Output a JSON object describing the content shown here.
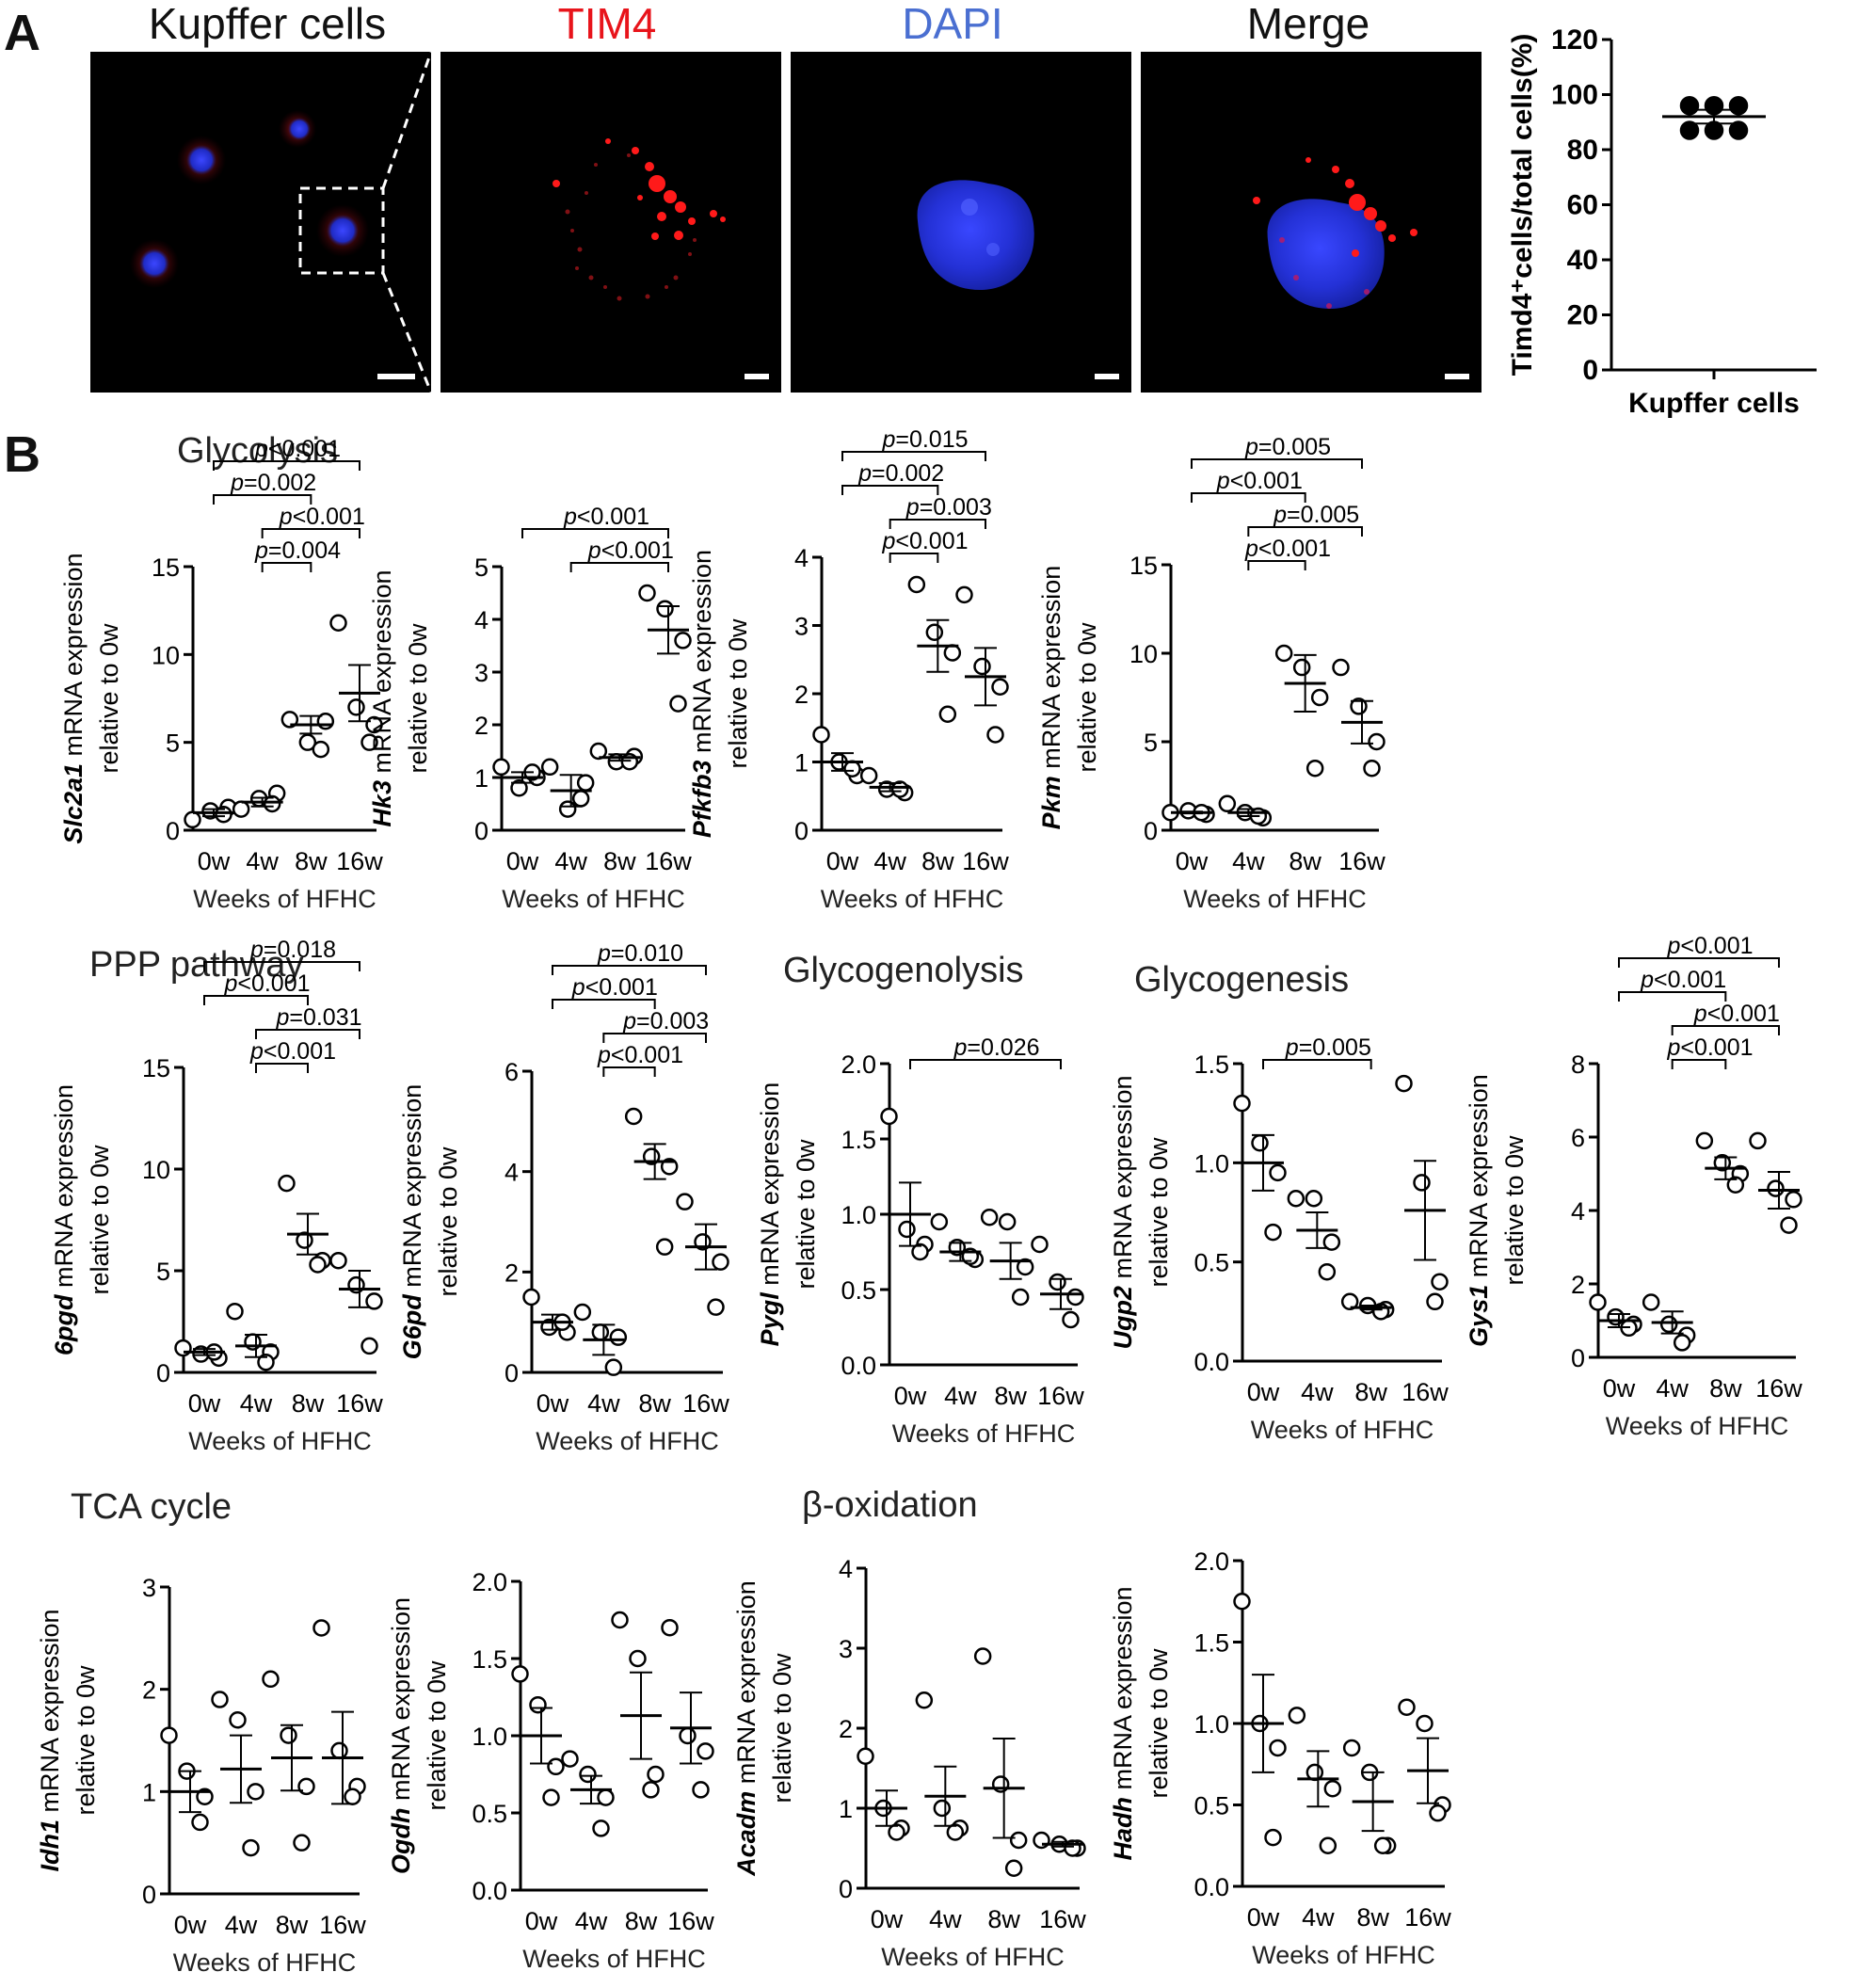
{
  "panel_labels": {
    "a": "A",
    "b": "B"
  },
  "micrographs": [
    {
      "title": "Kupffer cells",
      "color": "#000000"
    },
    {
      "title": "TIM4",
      "color": "#e8141b"
    },
    {
      "title": "DAPI",
      "color": "#4a6fd1"
    },
    {
      "title": "Merge",
      "color": "#000000"
    }
  ],
  "sections": {
    "glycolysis": "Glycolysis",
    "ppp": "PPP pathway",
    "glycogenolysis": "Glycogenolysis",
    "glycogenesis": "Glycogenesis",
    "tca": "TCA cycle",
    "beta_ox": "β-oxidation"
  },
  "chart_data": [
    {
      "id": "timd4",
      "type": "scatter",
      "ylabel": "Timd4⁺cells/total cells(%)",
      "categories": [
        "Kupffer cells"
      ],
      "yticks": [
        "0",
        "20",
        "40",
        "60",
        "80",
        "100",
        "120"
      ],
      "ylim": [
        0,
        120
      ],
      "points": [
        [
          96,
          96,
          96,
          87,
          87,
          87
        ]
      ],
      "mean": [
        92
      ],
      "sem": [
        2.5
      ]
    },
    {
      "id": "slc2a1",
      "type": "scatter",
      "gene": "Slc2a1",
      "ylabel_rest": " mRNA expression",
      "ylabel2": "relative to 0w",
      "xlabel": "Weeks of HFHC",
      "categories": [
        "0w",
        "4w",
        "8w",
        "16w"
      ],
      "yticks": [
        "0",
        "5",
        "10",
        "15"
      ],
      "ylim": [
        0,
        15
      ],
      "points": [
        [
          0.6,
          1.1,
          1.3,
          0.9
        ],
        [
          1.2,
          1.8,
          2.1,
          1.5
        ],
        [
          6.3,
          5.0,
          6.2,
          4.6
        ],
        [
          11.8,
          7.0,
          6.0,
          5.0
        ]
      ],
      "mean": [
        1.0,
        1.6,
        6.0,
        7.8
      ],
      "sem": [
        0.2,
        0.25,
        0.5,
        1.6
      ],
      "sig": [
        {
          "a": 0,
          "b": 3,
          "label": "p<0.001"
        },
        {
          "a": 0,
          "b": 2,
          "label": "p=0.002"
        },
        {
          "a": 1,
          "b": 3,
          "label": "p<0.001"
        },
        {
          "a": 1,
          "b": 2,
          "label": "p=0.004"
        }
      ]
    },
    {
      "id": "hk3",
      "type": "scatter",
      "gene": "Hk3",
      "ylabel_rest": " mRNA expression",
      "ylabel2": "relative to 0w",
      "xlabel": "Weeks of HFHC",
      "categories": [
        "0w",
        "4w",
        "8w",
        "16w"
      ],
      "yticks": [
        "0",
        "1",
        "2",
        "3",
        "4",
        "5"
      ],
      "ylim": [
        0,
        5
      ],
      "points": [
        [
          1.2,
          0.8,
          1.0,
          1.1
        ],
        [
          1.2,
          0.4,
          0.9,
          0.6
        ],
        [
          1.5,
          1.3,
          1.4,
          1.3
        ],
        [
          4.5,
          4.2,
          3.6,
          2.4
        ]
      ],
      "mean": [
        1.0,
        0.75,
        1.38,
        3.8
      ],
      "sem": [
        0.1,
        0.3,
        0.06,
        0.45
      ],
      "sig": [
        {
          "a": 0,
          "b": 3,
          "label": "p<0.001"
        },
        {
          "a": 1,
          "b": 3,
          "label": "p<0.001"
        }
      ]
    },
    {
      "id": "pfkfb3",
      "type": "scatter",
      "gene": "Pfkfb3",
      "ylabel_rest": " mRNA expression",
      "ylabel2": "relative to 0w",
      "xlabel": "Weeks of HFHC",
      "categories": [
        "0w",
        "4w",
        "8w",
        "16w"
      ],
      "yticks": [
        "0",
        "1",
        "2",
        "3",
        "4"
      ],
      "ylim": [
        0,
        4
      ],
      "points": [
        [
          1.4,
          1.0,
          0.8,
          0.9
        ],
        [
          0.8,
          0.6,
          0.55,
          0.6
        ],
        [
          3.6,
          2.9,
          2.6,
          1.7
        ],
        [
          3.45,
          2.4,
          2.1,
          1.4
        ]
      ],
      "mean": [
        1.0,
        0.63,
        2.7,
        2.25
      ],
      "sem": [
        0.13,
        0.06,
        0.38,
        0.42
      ],
      "sig": [
        {
          "a": 0,
          "b": 3,
          "label": "p=0.015"
        },
        {
          "a": 0,
          "b": 2,
          "label": "p=0.002"
        },
        {
          "a": 1,
          "b": 3,
          "label": "p=0.003"
        },
        {
          "a": 1,
          "b": 2,
          "label": "p<0.001"
        }
      ]
    },
    {
      "id": "pkm",
      "type": "scatter",
      "gene": "Pkm",
      "ylabel_rest": " mRNA expression",
      "ylabel2": "relative to 0w",
      "xlabel": "Weeks of HFHC",
      "categories": [
        "0w",
        "4w",
        "8w",
        "16w"
      ],
      "yticks": [
        "0",
        "5",
        "10",
        "15"
      ],
      "ylim": [
        0,
        15
      ],
      "points": [
        [
          1.0,
          1.1,
          0.9,
          1.0
        ],
        [
          1.5,
          1.0,
          0.7,
          0.8
        ],
        [
          10.0,
          9.2,
          7.5,
          3.5
        ],
        [
          9.2,
          7.0,
          5.0,
          3.5
        ]
      ],
      "mean": [
        1.0,
        1.0,
        8.3,
        6.1
      ],
      "sem": [
        0.05,
        0.2,
        1.6,
        1.2
      ],
      "sig": [
        {
          "a": 0,
          "b": 3,
          "label": "p=0.005"
        },
        {
          "a": 0,
          "b": 2,
          "label": "p<0.001"
        },
        {
          "a": 1,
          "b": 3,
          "label": "p=0.005"
        },
        {
          "a": 1,
          "b": 2,
          "label": "p<0.001"
        }
      ]
    },
    {
      "id": "6pgd",
      "type": "scatter",
      "gene": "6pgd",
      "ylabel_rest": " mRNA expression",
      "ylabel2": "relative to 0w",
      "xlabel": "Weeks of HFHC",
      "categories": [
        "0w",
        "4w",
        "8w",
        "16w"
      ],
      "yticks": [
        "0",
        "5",
        "10",
        "15"
      ],
      "ylim": [
        0,
        15
      ],
      "points": [
        [
          1.2,
          0.9,
          0.7,
          1.0
        ],
        [
          3.0,
          1.5,
          1.0,
          0.5
        ],
        [
          9.3,
          6.5,
          5.5,
          5.3
        ],
        [
          5.5,
          4.3,
          3.5,
          1.3
        ]
      ],
      "mean": [
        1.0,
        1.3,
        6.8,
        4.1
      ],
      "sem": [
        0.15,
        0.55,
        1.0,
        0.9
      ],
      "sig": [
        {
          "a": 0,
          "b": 3,
          "label": "p=0.018"
        },
        {
          "a": 0,
          "b": 2,
          "label": "p<0.001"
        },
        {
          "a": 1,
          "b": 3,
          "label": "p=0.031"
        },
        {
          "a": 1,
          "b": 2,
          "label": "p<0.001"
        }
      ]
    },
    {
      "id": "g6pd",
      "type": "scatter",
      "gene": "G6pd",
      "ylabel_rest": " mRNA expression",
      "ylabel2": "relative to 0w",
      "xlabel": "Weeks of HFHC",
      "categories": [
        "0w",
        "4w",
        "8w",
        "16w"
      ],
      "yticks": [
        "0",
        "2",
        "4",
        "6"
      ],
      "ylim": [
        0,
        6
      ],
      "points": [
        [
          1.5,
          0.9,
          0.8,
          1.0
        ],
        [
          1.2,
          0.8,
          0.7,
          0.1
        ],
        [
          5.1,
          4.3,
          4.1,
          2.5
        ],
        [
          3.4,
          2.6,
          2.2,
          1.3
        ]
      ],
      "mean": [
        1.0,
        0.65,
        4.2,
        2.5
      ],
      "sem": [
        0.15,
        0.3,
        0.35,
        0.45
      ],
      "sig": [
        {
          "a": 0,
          "b": 3,
          "label": "p=0.010"
        },
        {
          "a": 0,
          "b": 2,
          "label": "p<0.001"
        },
        {
          "a": 1,
          "b": 3,
          "label": "p=0.003"
        },
        {
          "a": 1,
          "b": 2,
          "label": "p<0.001"
        }
      ]
    },
    {
      "id": "pygl",
      "type": "scatter",
      "gene": "Pygl",
      "ylabel_rest": " mRNA expression",
      "ylabel2": "relative to 0w",
      "xlabel": "Weeks of HFHC",
      "categories": [
        "0w",
        "4w",
        "8w",
        "16w"
      ],
      "yticks": [
        "0.0",
        "0.5",
        "1.0",
        "1.5",
        "2.0"
      ],
      "ylim": [
        0,
        2
      ],
      "points": [
        [
          1.65,
          0.9,
          0.8,
          0.75
        ],
        [
          0.95,
          0.78,
          0.7,
          0.72
        ],
        [
          0.98,
          0.95,
          0.65,
          0.45
        ],
        [
          0.8,
          0.55,
          0.45,
          0.3
        ]
      ],
      "mean": [
        1.0,
        0.75,
        0.69,
        0.47
      ],
      "sem": [
        0.21,
        0.06,
        0.12,
        0.1
      ],
      "sig": [
        {
          "a": 0,
          "b": 3,
          "label": "p=0.026"
        }
      ]
    },
    {
      "id": "ugp2",
      "type": "scatter",
      "gene": "Ugp2",
      "ylabel_rest": " mRNA expression",
      "ylabel2": "relative to 0w",
      "xlabel": "Weeks of HFHC",
      "categories": [
        "0w",
        "4w",
        "8w",
        "16w"
      ],
      "yticks": [
        "0.0",
        "0.5",
        "1.0",
        "1.5"
      ],
      "ylim": [
        0,
        1.5
      ],
      "points": [
        [
          1.3,
          1.1,
          0.95,
          0.65
        ],
        [
          0.82,
          0.82,
          0.6,
          0.45
        ],
        [
          0.3,
          0.28,
          0.26,
          0.25
        ],
        [
          1.4,
          0.9,
          0.4,
          0.3
        ]
      ],
      "mean": [
        1.0,
        0.66,
        0.27,
        0.76
      ],
      "sem": [
        0.14,
        0.09,
        0.01,
        0.25
      ],
      "sig": [
        {
          "a": 0,
          "b": 2,
          "label": "p=0.005"
        }
      ]
    },
    {
      "id": "gys1",
      "type": "scatter",
      "gene": "Gys1",
      "ylabel_rest": " mRNA expression",
      "ylabel2": "relative to 0w",
      "xlabel": "Weeks of HFHC",
      "categories": [
        "0w",
        "4w",
        "8w",
        "16w"
      ],
      "yticks": [
        "0",
        "2",
        "4",
        "6",
        "8"
      ],
      "ylim": [
        0,
        8
      ],
      "points": [
        [
          1.5,
          1.1,
          0.9,
          0.8
        ],
        [
          1.5,
          0.9,
          0.6,
          0.4
        ],
        [
          5.9,
          5.3,
          5.0,
          4.7
        ],
        [
          5.9,
          4.6,
          4.3,
          3.6
        ]
      ],
      "mean": [
        1.0,
        0.95,
        5.15,
        4.55
      ],
      "sem": [
        0.18,
        0.3,
        0.3,
        0.5
      ],
      "sig": [
        {
          "a": 0,
          "b": 3,
          "label": "p<0.001"
        },
        {
          "a": 0,
          "b": 2,
          "label": "p<0.001"
        },
        {
          "a": 1,
          "b": 3,
          "label": "p<0.001"
        },
        {
          "a": 1,
          "b": 2,
          "label": "p<0.001"
        }
      ]
    },
    {
      "id": "idh1",
      "type": "scatter",
      "gene": "Idh1",
      "ylabel_rest": " mRNA expression",
      "ylabel2": "relative to 0w",
      "xlabel": "Weeks of HFHC",
      "categories": [
        "0w",
        "4w",
        "8w",
        "16w"
      ],
      "yticks": [
        "0",
        "1",
        "2",
        "3"
      ],
      "ylim": [
        0,
        3
      ],
      "points": [
        [
          1.55,
          1.2,
          0.95,
          0.7
        ],
        [
          1.9,
          1.7,
          1.0,
          0.45
        ],
        [
          2.1,
          1.55,
          1.05,
          0.5
        ],
        [
          2.6,
          1.4,
          1.05,
          0.95
        ]
      ],
      "mean": [
        1.0,
        1.22,
        1.33,
        1.33
      ],
      "sem": [
        0.2,
        0.33,
        0.32,
        0.45
      ],
      "sig": []
    },
    {
      "id": "ogdh",
      "type": "scatter",
      "gene": "Ogdh",
      "ylabel_rest": " mRNA expression",
      "ylabel2": "relative to 0w",
      "xlabel": "Weeks of HFHC",
      "categories": [
        "0w",
        "4w",
        "8w",
        "16w"
      ],
      "yticks": [
        "0.0",
        "0.5",
        "1.0",
        "1.5",
        "2.0"
      ],
      "ylim": [
        0,
        2
      ],
      "points": [
        [
          1.4,
          1.2,
          0.8,
          0.6
        ],
        [
          0.85,
          0.75,
          0.6,
          0.4
        ],
        [
          1.75,
          1.5,
          0.75,
          0.65
        ],
        [
          1.7,
          1.0,
          0.9,
          0.65
        ]
      ],
      "mean": [
        1.0,
        0.65,
        1.13,
        1.05
      ],
      "sem": [
        0.18,
        0.09,
        0.28,
        0.23
      ],
      "sig": []
    },
    {
      "id": "acadm",
      "type": "scatter",
      "gene": "Acadm",
      "ylabel_rest": " mRNA expression",
      "ylabel2": "relative to 0w",
      "xlabel": "Weeks of HFHC",
      "categories": [
        "0w",
        "4w",
        "8w",
        "16w"
      ],
      "yticks": [
        "0",
        "1",
        "2",
        "3",
        "4"
      ],
      "ylim": [
        0,
        4
      ],
      "points": [
        [
          1.65,
          1.0,
          0.75,
          0.7
        ],
        [
          2.35,
          1.0,
          0.75,
          0.7
        ],
        [
          2.9,
          1.3,
          0.6,
          0.25
        ],
        [
          0.6,
          0.55,
          0.5,
          0.5
        ]
      ],
      "mean": [
        1.0,
        1.15,
        1.25,
        0.55
      ],
      "sem": [
        0.22,
        0.37,
        0.62,
        0.03
      ],
      "sig": []
    },
    {
      "id": "hadh",
      "type": "scatter",
      "gene": "Hadh",
      "ylabel_rest": " mRNA expression",
      "ylabel2": "relative to 0w",
      "xlabel": "Weeks of HFHC",
      "categories": [
        "0w",
        "4w",
        "8w",
        "16w"
      ],
      "yticks": [
        "0.0",
        "0.5",
        "1.0",
        "1.5",
        "2.0"
      ],
      "ylim": [
        0,
        2
      ],
      "points": [
        [
          1.75,
          1.0,
          0.85,
          0.3
        ],
        [
          1.05,
          0.7,
          0.6,
          0.25
        ],
        [
          0.85,
          0.7,
          0.25,
          0.25
        ],
        [
          1.1,
          1.0,
          0.5,
          0.45
        ]
      ],
      "mean": [
        1.0,
        0.66,
        0.52,
        0.71
      ],
      "sem": [
        0.3,
        0.17,
        0.18,
        0.2
      ],
      "sig": []
    }
  ]
}
